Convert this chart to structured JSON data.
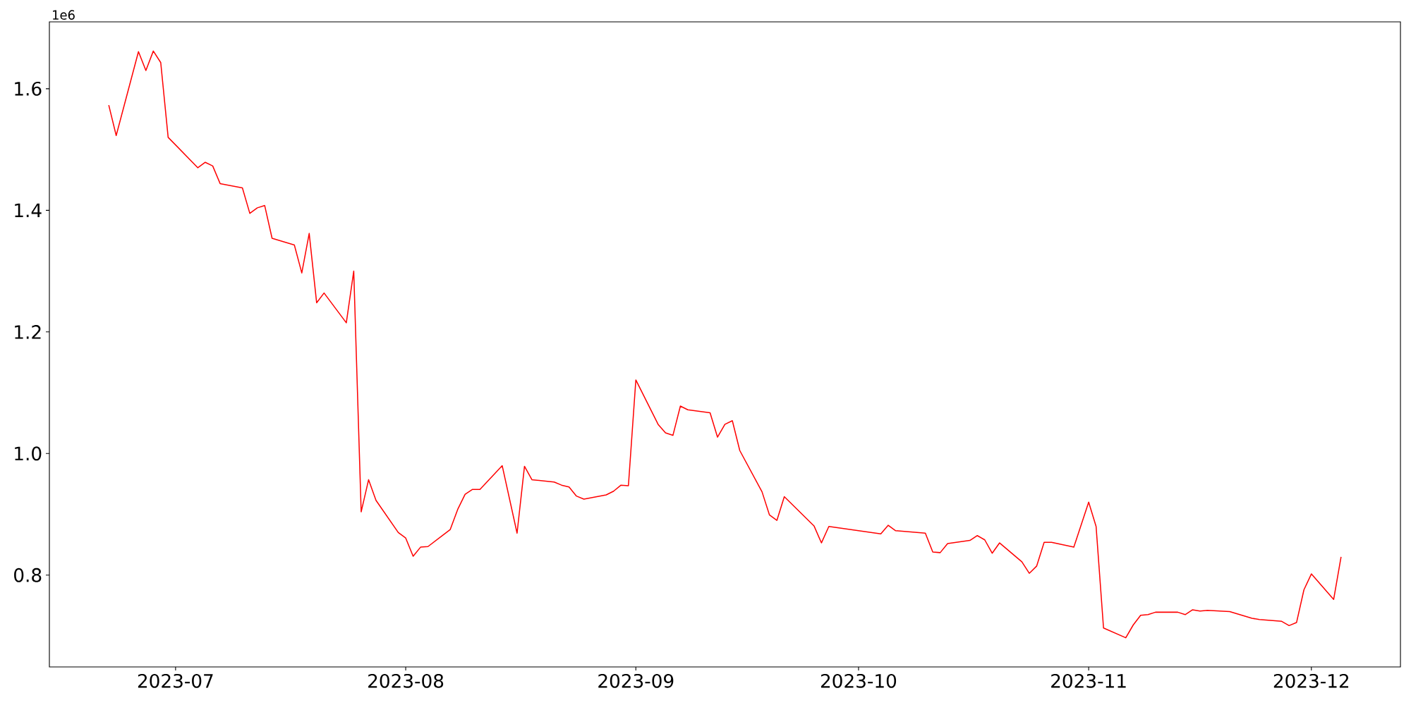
{
  "chart_data": {
    "type": "line",
    "x": [
      "2023-06-22",
      "2023-06-23",
      "2023-06-26",
      "2023-06-27",
      "2023-06-28",
      "2023-06-29",
      "2023-06-30",
      "2023-07-04",
      "2023-07-05",
      "2023-07-06",
      "2023-07-07",
      "2023-07-10",
      "2023-07-11",
      "2023-07-12",
      "2023-07-13",
      "2023-07-14",
      "2023-07-17",
      "2023-07-18",
      "2023-07-19",
      "2023-07-20",
      "2023-07-21",
      "2023-07-24",
      "2023-07-25",
      "2023-07-26",
      "2023-07-27",
      "2023-07-28",
      "2023-07-31",
      "2023-08-01",
      "2023-08-02",
      "2023-08-03",
      "2023-08-04",
      "2023-08-07",
      "2023-08-08",
      "2023-08-09",
      "2023-08-10",
      "2023-08-11",
      "2023-08-14",
      "2023-08-16",
      "2023-08-17",
      "2023-08-18",
      "2023-08-21",
      "2023-08-22",
      "2023-08-23",
      "2023-08-24",
      "2023-08-25",
      "2023-08-28",
      "2023-08-29",
      "2023-08-30",
      "2023-08-31",
      "2023-09-01",
      "2023-09-04",
      "2023-09-05",
      "2023-09-06",
      "2023-09-07",
      "2023-09-08",
      "2023-09-11",
      "2023-09-12",
      "2023-09-13",
      "2023-09-14",
      "2023-09-15",
      "2023-09-18",
      "2023-09-19",
      "2023-09-20",
      "2023-09-21",
      "2023-09-25",
      "2023-09-26",
      "2023-09-27",
      "2023-10-04",
      "2023-10-05",
      "2023-10-06",
      "2023-10-10",
      "2023-10-11",
      "2023-10-12",
      "2023-10-13",
      "2023-10-16",
      "2023-10-17",
      "2023-10-18",
      "2023-10-19",
      "2023-10-20",
      "2023-10-23",
      "2023-10-24",
      "2023-10-25",
      "2023-10-26",
      "2023-10-27",
      "2023-10-30",
      "2023-11-01",
      "2023-11-02",
      "2023-11-03",
      "2023-11-06",
      "2023-11-07",
      "2023-11-08",
      "2023-11-09",
      "2023-11-10",
      "2023-11-13",
      "2023-11-14",
      "2023-11-15",
      "2023-11-16",
      "2023-11-17",
      "2023-11-20",
      "2023-11-23",
      "2023-11-24",
      "2023-11-27",
      "2023-11-28",
      "2023-11-29",
      "2023-11-30",
      "2023-12-01",
      "2023-12-04",
      "2023-12-05"
    ],
    "values": [
      1.573,
      1.523,
      1.661,
      1.63,
      1.662,
      1.643,
      1.52,
      1.47,
      1.479,
      1.473,
      1.444,
      1.437,
      1.395,
      1.404,
      1.408,
      1.354,
      1.343,
      1.297,
      1.362,
      1.248,
      1.264,
      1.215,
      1.3,
      0.904,
      0.957,
      0.923,
      0.87,
      0.861,
      0.831,
      0.846,
      0.847,
      0.875,
      0.908,
      0.933,
      0.941,
      0.941,
      0.98,
      0.869,
      0.979,
      0.957,
      0.953,
      0.948,
      0.945,
      0.93,
      0.925,
      0.932,
      0.938,
      0.948,
      0.947,
      1.121,
      1.048,
      1.034,
      1.03,
      1.078,
      1.072,
      1.067,
      1.027,
      1.048,
      1.054,
      1.005,
      0.937,
      0.899,
      0.89,
      0.929,
      0.881,
      0.853,
      0.88,
      0.868,
      0.882,
      0.873,
      0.869,
      0.838,
      0.837,
      0.852,
      0.857,
      0.865,
      0.858,
      0.836,
      0.853,
      0.822,
      0.803,
      0.815,
      0.854,
      0.854,
      0.846,
      0.92,
      0.88,
      0.713,
      0.697,
      0.718,
      0.734,
      0.735,
      0.739,
      0.739,
      0.735,
      0.743,
      0.741,
      0.742,
      0.74,
      0.729,
      0.727,
      0.724,
      0.717,
      0.722,
      0.776,
      0.802,
      0.76,
      0.83
    ],
    "color": "#ff0000",
    "xlim": [
      "2023-06-14",
      "2023-12-13"
    ],
    "ylim": [
      0.649,
      1.71
    ],
    "xticks": [
      {
        "value": "2023-07-01",
        "label": "2023-07"
      },
      {
        "value": "2023-08-01",
        "label": "2023-08"
      },
      {
        "value": "2023-09-01",
        "label": "2023-09"
      },
      {
        "value": "2023-10-01",
        "label": "2023-10"
      },
      {
        "value": "2023-11-01",
        "label": "2023-11"
      },
      {
        "value": "2023-12-01",
        "label": "2023-12"
      }
    ],
    "yticks": [
      {
        "value": 0.8,
        "label": "0.8"
      },
      {
        "value": 1,
        "label": "1.0"
      },
      {
        "value": 1.2,
        "label": "1.2"
      },
      {
        "value": 1.4,
        "label": "1.4"
      },
      {
        "value": 1.6,
        "label": "1.6"
      }
    ],
    "annotations": [
      "1e6"
    ]
  }
}
